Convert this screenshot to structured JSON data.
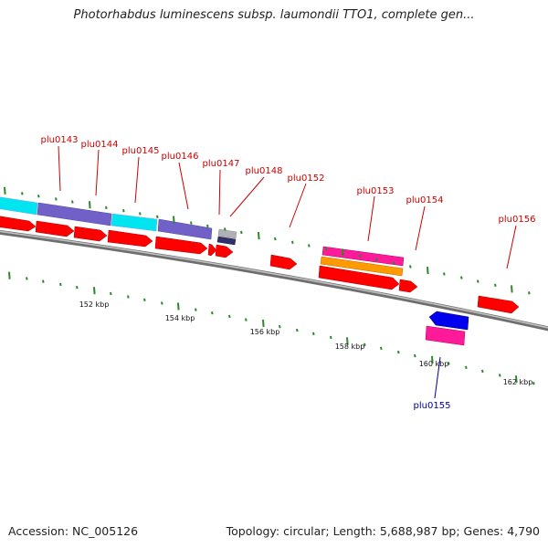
{
  "title": "Photorhabdus luminescens subsp. laumondii TTO1, complete gen...",
  "accession": "Accession: NC_005126",
  "summary": "Topology: circular; Length: 5,688,987 bp; Genes: 4,790",
  "ruler_labels": [
    "152 kbp",
    "154 kbp",
    "156 kbp",
    "158 kbp",
    "160 kbp",
    "162 kbp"
  ],
  "gene_labels": [
    {
      "name": "plu0143",
      "strand": "forward"
    },
    {
      "name": "plu0144",
      "strand": "forward"
    },
    {
      "name": "plu0145",
      "strand": "forward"
    },
    {
      "name": "plu0146",
      "strand": "forward"
    },
    {
      "name": "plu0147",
      "strand": "forward"
    },
    {
      "name": "plu0148",
      "strand": "forward"
    },
    {
      "name": "plu0152",
      "strand": "forward"
    },
    {
      "name": "plu0153",
      "strand": "forward"
    },
    {
      "name": "plu0154",
      "strand": "forward"
    },
    {
      "name": "plu0156",
      "strand": "forward"
    },
    {
      "name": "plu0155",
      "strand": "reverse"
    }
  ],
  "colors": {
    "gene": "#ff0000",
    "cyan_feature": "#00e5f0",
    "purple_feature": "#7060c8",
    "magenta_feature": "#ff1a9a",
    "orange_feature": "#ff9a00",
    "reverse_gene": "#0000ee",
    "forward_label": "#cc0000",
    "reverse_label": "#000099",
    "tick": "#2a8a2a",
    "backbone": "#808080"
  }
}
